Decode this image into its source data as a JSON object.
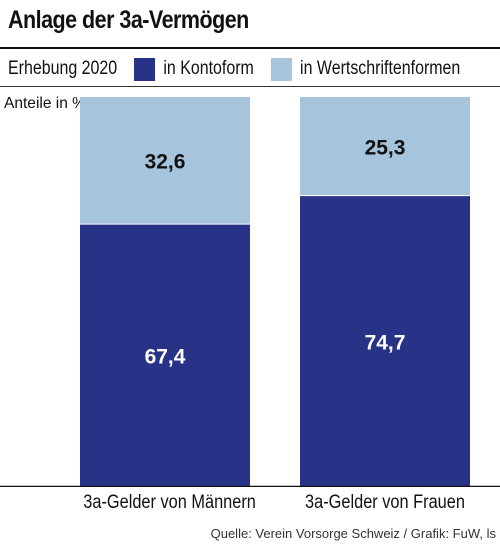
{
  "header": {
    "title": "Anlage der 3a-Vermögen",
    "subtitle": "Erhebung 2020"
  },
  "legend": [
    {
      "label": "in Kontoform",
      "color": "#283286"
    },
    {
      "label": "in Wertschriftenformen",
      "color": "#a7c4dd"
    }
  ],
  "footer": {
    "source": "Quelle: Verein Vorsorge Schweiz / Grafik: FuW, ls"
  },
  "chart_data": {
    "type": "bar",
    "stacked": true,
    "ylabel": "Anteile in %",
    "ylim": [
      0,
      100
    ],
    "categories": [
      "3a-Gelder von Männern",
      "3a-Gelder von Frauen"
    ],
    "series": [
      {
        "name": "in Kontoform",
        "values": [
          67.4,
          74.7
        ],
        "labels": [
          "67,4",
          "74,7"
        ],
        "color": "#283286",
        "label_color": "#ffffff"
      },
      {
        "name": "in Wertschriftenformen",
        "values": [
          32.6,
          25.3
        ],
        "labels": [
          "32,6",
          "25,3"
        ],
        "color": "#a7c4dd",
        "label_color": "#111111"
      }
    ]
  }
}
